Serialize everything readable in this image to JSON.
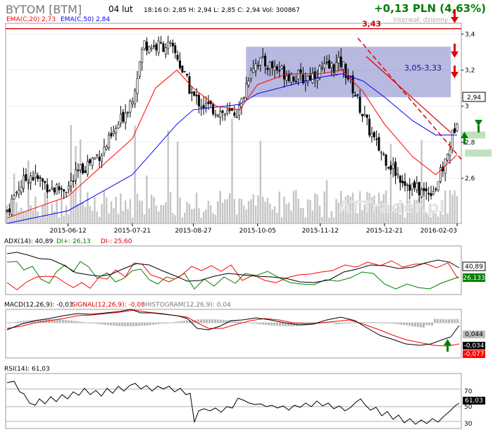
{
  "header": {
    "ticker": "BYTOM [BTM]",
    "date": "04 lut",
    "time": "18:16",
    "ohlc": "O: 2,85  H: 2,94  L: 2,85  C: 2,94  Vol: 300867",
    "change": "+0,13 PLN (4,63%)",
    "interval_label": "Interwał: dzienny"
  },
  "watermark": "ATTrader.pl",
  "colors": {
    "ema20": "#ff0000",
    "ema50": "#0000ff",
    "di_plus": "#008000",
    "di_minus": "#ff0000",
    "zone": "#7b7fc8",
    "arrow_down": "#e00000",
    "arrow_up": "#008000",
    "change": "#008000"
  },
  "chart_data": [
    {
      "type": "candlestick",
      "legend": [
        "EMA(C,20) 2,73",
        "EMA(C,50) 2,84"
      ],
      "x_tick_labels": [
        "2015-06-12",
        "2015-07-21",
        "2015-08-27",
        "2015-10-05",
        "2015-11-12",
        "2015-12-21",
        "2016-02-03"
      ],
      "y_tick_labels": [
        "2,6",
        "2,8",
        "3",
        "3,2",
        "3,4"
      ],
      "ylim": [
        2.35,
        3.46
      ],
      "last_price_label": "2,94",
      "resistance": {
        "value": 3.43,
        "label": "3,43"
      },
      "zone": {
        "from": 3.05,
        "to": 3.33,
        "label": "3,05-3,33"
      },
      "support_levels": [
        2.84,
        2.74
      ],
      "close_path": [
        [
          "2015-05-06",
          2.42
        ],
        [
          "2015-05-13",
          2.55
        ],
        [
          "2015-05-20",
          2.62
        ],
        [
          "2015-05-27",
          2.58
        ],
        [
          "2015-06-03",
          2.54
        ],
        [
          "2015-06-12",
          2.55
        ],
        [
          "2015-06-19",
          2.64
        ],
        [
          "2015-06-26",
          2.7
        ],
        [
          "2015-07-03",
          2.75
        ],
        [
          "2015-07-10",
          2.85
        ],
        [
          "2015-07-21",
          3.05
        ],
        [
          "2015-07-28",
          3.35
        ],
        [
          "2015-08-04",
          3.33
        ],
        [
          "2015-08-11",
          3.34
        ],
        [
          "2015-08-17",
          3.28
        ],
        [
          "2015-08-21",
          3.18
        ],
        [
          "2015-08-27",
          3.05
        ],
        [
          "2015-09-03",
          3.0
        ],
        [
          "2015-09-10",
          2.98
        ],
        [
          "2015-09-17",
          2.95
        ],
        [
          "2015-09-24",
          2.98
        ],
        [
          "2015-10-01",
          3.22
        ],
        [
          "2015-10-05",
          3.25
        ],
        [
          "2015-10-14",
          3.22
        ],
        [
          "2015-10-23",
          3.18
        ],
        [
          "2015-11-02",
          3.15
        ],
        [
          "2015-11-12",
          3.2
        ],
        [
          "2015-11-20",
          3.22
        ],
        [
          "2015-11-25",
          3.24
        ],
        [
          "2015-12-01",
          3.12
        ],
        [
          "2015-12-08",
          2.95
        ],
        [
          "2015-12-15",
          2.8
        ],
        [
          "2015-12-21",
          2.72
        ],
        [
          "2015-12-29",
          2.62
        ],
        [
          "2016-01-07",
          2.55
        ],
        [
          "2016-01-14",
          2.52
        ],
        [
          "2016-01-21",
          2.55
        ],
        [
          "2016-01-28",
          2.72
        ],
        [
          "2016-02-03",
          2.94
        ]
      ],
      "ema20_path": [
        [
          "2015-05-06",
          2.38
        ],
        [
          "2015-06-12",
          2.5
        ],
        [
          "2015-07-21",
          2.82
        ],
        [
          "2015-08-04",
          3.1
        ],
        [
          "2015-08-17",
          3.2
        ],
        [
          "2015-08-27",
          3.1
        ],
        [
          "2015-09-10",
          3.0
        ],
        [
          "2015-09-24",
          2.98
        ],
        [
          "2015-10-05",
          3.12
        ],
        [
          "2015-10-23",
          3.18
        ],
        [
          "2015-11-12",
          3.18
        ],
        [
          "2015-11-25",
          3.2
        ],
        [
          "2015-12-08",
          3.08
        ],
        [
          "2015-12-21",
          2.9
        ],
        [
          "2016-01-07",
          2.72
        ],
        [
          "2016-01-21",
          2.62
        ],
        [
          "2016-02-03",
          2.73
        ]
      ],
      "ema50_path": [
        [
          "2015-05-06",
          2.35
        ],
        [
          "2015-06-12",
          2.42
        ],
        [
          "2015-07-21",
          2.62
        ],
        [
          "2015-08-17",
          2.9
        ],
        [
          "2015-08-27",
          2.98
        ],
        [
          "2015-09-24",
          3.01
        ],
        [
          "2015-10-05",
          3.07
        ],
        [
          "2015-11-12",
          3.16
        ],
        [
          "2015-11-25",
          3.18
        ],
        [
          "2015-12-08",
          3.14
        ],
        [
          "2015-12-21",
          3.05
        ],
        [
          "2016-01-07",
          2.92
        ],
        [
          "2016-01-21",
          2.84
        ],
        [
          "2016-02-03",
          2.84
        ]
      ]
    },
    {
      "type": "line",
      "title": "ADX(14): 40,89",
      "series": [
        {
          "name": "DI+: 26,13",
          "value_label": "26,133"
        },
        {
          "name": "DI-: 25,60"
        }
      ],
      "value_labels": [
        "40,89",
        "26,133"
      ]
    },
    {
      "type": "line",
      "title": "MACD(12,26,9): -0,03",
      "series": [
        {
          "name": "SIGNAL(12,26,9): -0,08"
        },
        {
          "name": "HISTOGRAM(12,26,9): 0,04"
        }
      ],
      "value_labels": [
        "0,044",
        "-0,034",
        "-0,077"
      ]
    },
    {
      "type": "line",
      "title": "RSI(14): 61,03",
      "y_tick_labels": [
        "70",
        "50",
        "30"
      ],
      "reference_lines": [
        70,
        50,
        30
      ],
      "value_label": "61,03"
    }
  ]
}
